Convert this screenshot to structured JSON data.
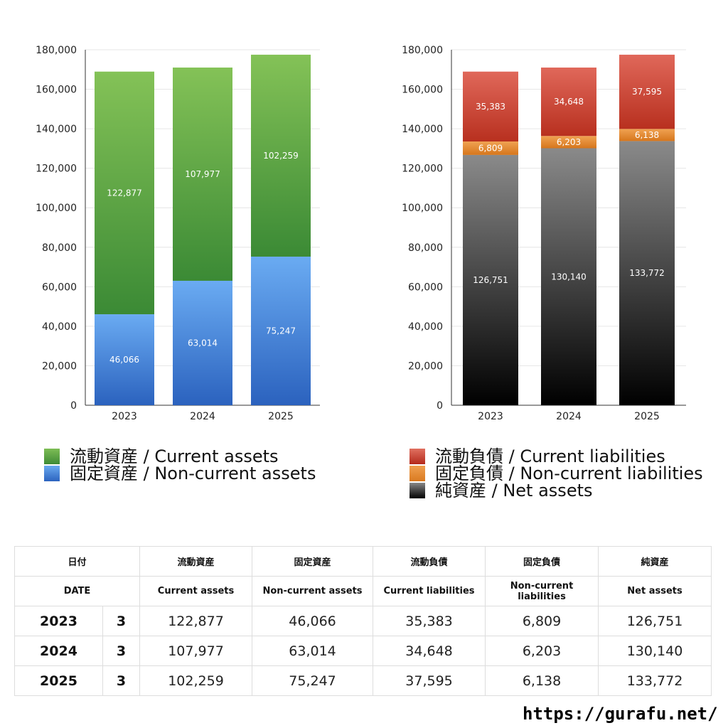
{
  "chart_data": [
    {
      "type": "bar",
      "stacked": true,
      "categories": [
        "2023",
        "2024",
        "2025"
      ],
      "series": [
        {
          "name": "固定資産 / Non-current assets",
          "values": [
            46066,
            63014,
            75247
          ],
          "color": "#4a8ee0"
        },
        {
          "name": "流動資産 / Current assets",
          "values": [
            122877,
            107977,
            102259
          ],
          "color": "#5aa346"
        }
      ],
      "ylim": [
        0,
        180000
      ],
      "yticks": [
        "0",
        "20,000",
        "40,000",
        "60,000",
        "80,000",
        "100,000",
        "120,000",
        "140,000",
        "160,000",
        "180,000"
      ],
      "grid": true,
      "legend_position": "bottom"
    },
    {
      "type": "bar",
      "stacked": true,
      "categories": [
        "2023",
        "2024",
        "2025"
      ],
      "series": [
        {
          "name": "純資産 / Net assets",
          "values": [
            126751,
            130140,
            133772
          ],
          "color": "#333333"
        },
        {
          "name": "固定負債 / Non-current liabilities",
          "values": [
            6809,
            6203,
            6138
          ],
          "color": "#e28a33"
        },
        {
          "name": "流動負債 / Current liabilities",
          "values": [
            35383,
            34648,
            37595
          ],
          "color": "#c8402e"
        }
      ],
      "ylim": [
        0,
        180000
      ],
      "yticks": [
        "0",
        "20,000",
        "40,000",
        "60,000",
        "80,000",
        "100,000",
        "120,000",
        "140,000",
        "160,000",
        "180,000"
      ],
      "grid": true,
      "legend_position": "bottom"
    }
  ],
  "legend_left": [
    {
      "label": "流動資産 / Current assets",
      "swatch": "green"
    },
    {
      "label": "固定資産 / Non-current assets",
      "swatch": "blue"
    }
  ],
  "legend_right": [
    {
      "label": "流動負債 / Current liabilities",
      "swatch": "red"
    },
    {
      "label": "固定負債 / Non-current liabilities",
      "swatch": "orange"
    },
    {
      "label": "純資産 / Net assets",
      "swatch": "black"
    }
  ],
  "table": {
    "header_jp": [
      "日付",
      "流動資産",
      "固定資産",
      "流動負債",
      "固定負債",
      "純資産"
    ],
    "header_en": [
      "DATE",
      "Current assets",
      "Non-current assets",
      "Current liabilities",
      "Non-current liabilities",
      "Net assets"
    ],
    "rows": [
      {
        "year": "2023",
        "month": "3",
        "values": [
          "122,877",
          "46,066",
          "35,383",
          "6,809",
          "126,751"
        ]
      },
      {
        "year": "2024",
        "month": "3",
        "values": [
          "107,977",
          "63,014",
          "34,648",
          "6,203",
          "130,140"
        ]
      },
      {
        "year": "2025",
        "month": "3",
        "values": [
          "102,259",
          "75,247",
          "37,595",
          "6,138",
          "133,772"
        ]
      }
    ]
  },
  "site_url": "https://gurafu.net/"
}
